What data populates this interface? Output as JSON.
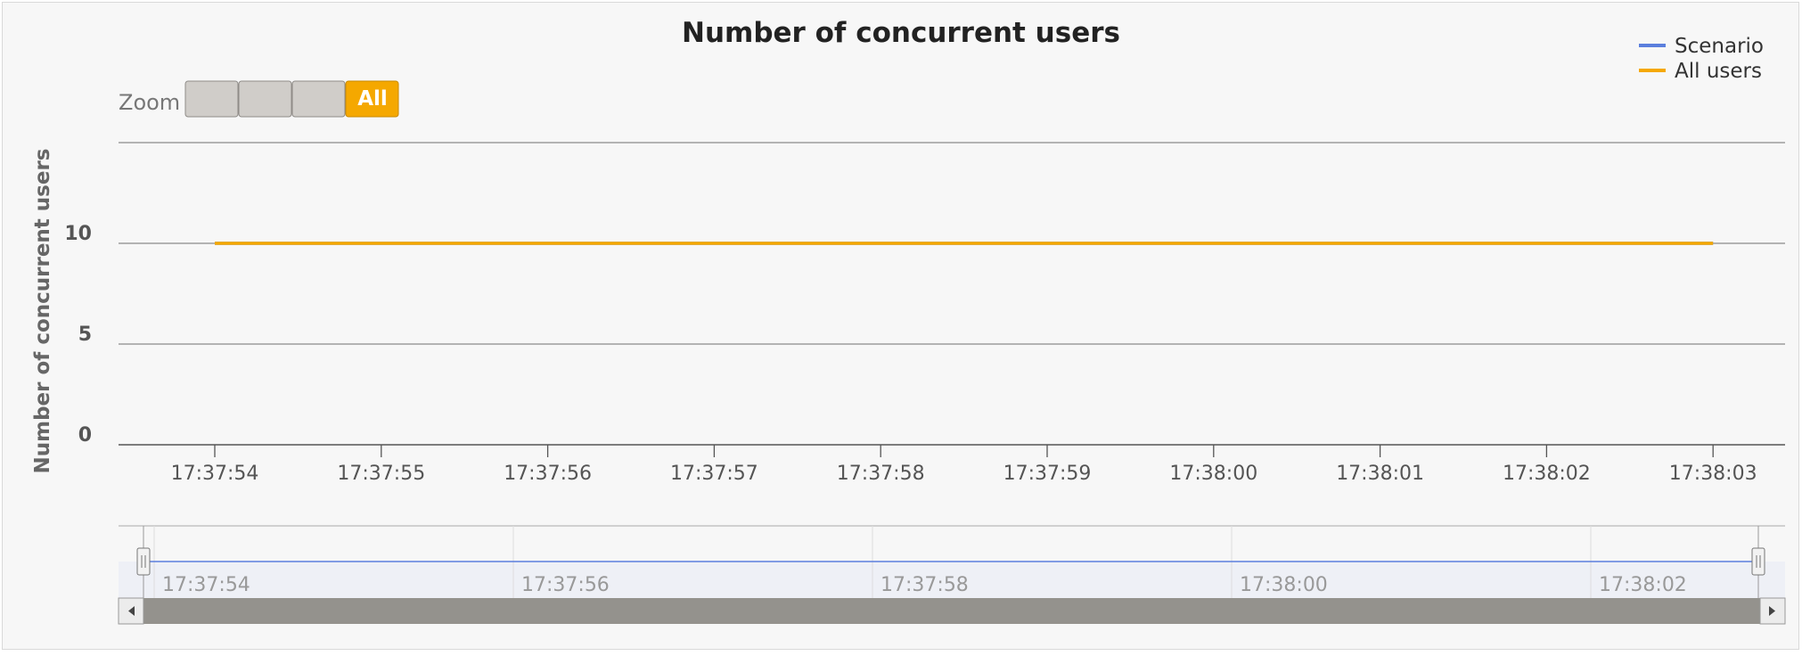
{
  "chart_data": {
    "type": "line",
    "title": "Number of concurrent users",
    "ylabel": "Number of concurrent users",
    "xlabel": "",
    "x_ticks": [
      "17:37:54",
      "17:37:55",
      "17:37:56",
      "17:37:57",
      "17:37:58",
      "17:37:59",
      "17:38:00",
      "17:38:01",
      "17:38:02",
      "17:38:03"
    ],
    "y_ticks": [
      0,
      5,
      10
    ],
    "ylim": [
      0,
      15
    ],
    "grid": true,
    "legend_position": "top-right",
    "series": [
      {
        "name": "Scenario",
        "color": "#5b7fdd",
        "x": [
          "17:37:54",
          "17:38:03"
        ],
        "y": [
          10,
          10
        ]
      },
      {
        "name": "All users",
        "color": "#f5a800",
        "x": [
          "17:37:54",
          "17:38:03"
        ],
        "y": [
          10,
          10
        ]
      }
    ]
  },
  "zoom": {
    "label": "Zoom",
    "buttons": [
      {
        "label": "",
        "selected": false
      },
      {
        "label": "",
        "selected": false
      },
      {
        "label": "",
        "selected": false
      },
      {
        "label": "All",
        "selected": true
      }
    ]
  },
  "navigator": {
    "ticks": [
      "17:37:54",
      "17:37:56",
      "17:37:58",
      "17:38:00",
      "17:38:02"
    ]
  },
  "colors": {
    "button_selected": "#f5a800",
    "button_default": "#d0cdc9",
    "scrollbar": "#94928d",
    "navigator_fill": "#eef0f6",
    "navigator_line": "#5b7fdd"
  }
}
